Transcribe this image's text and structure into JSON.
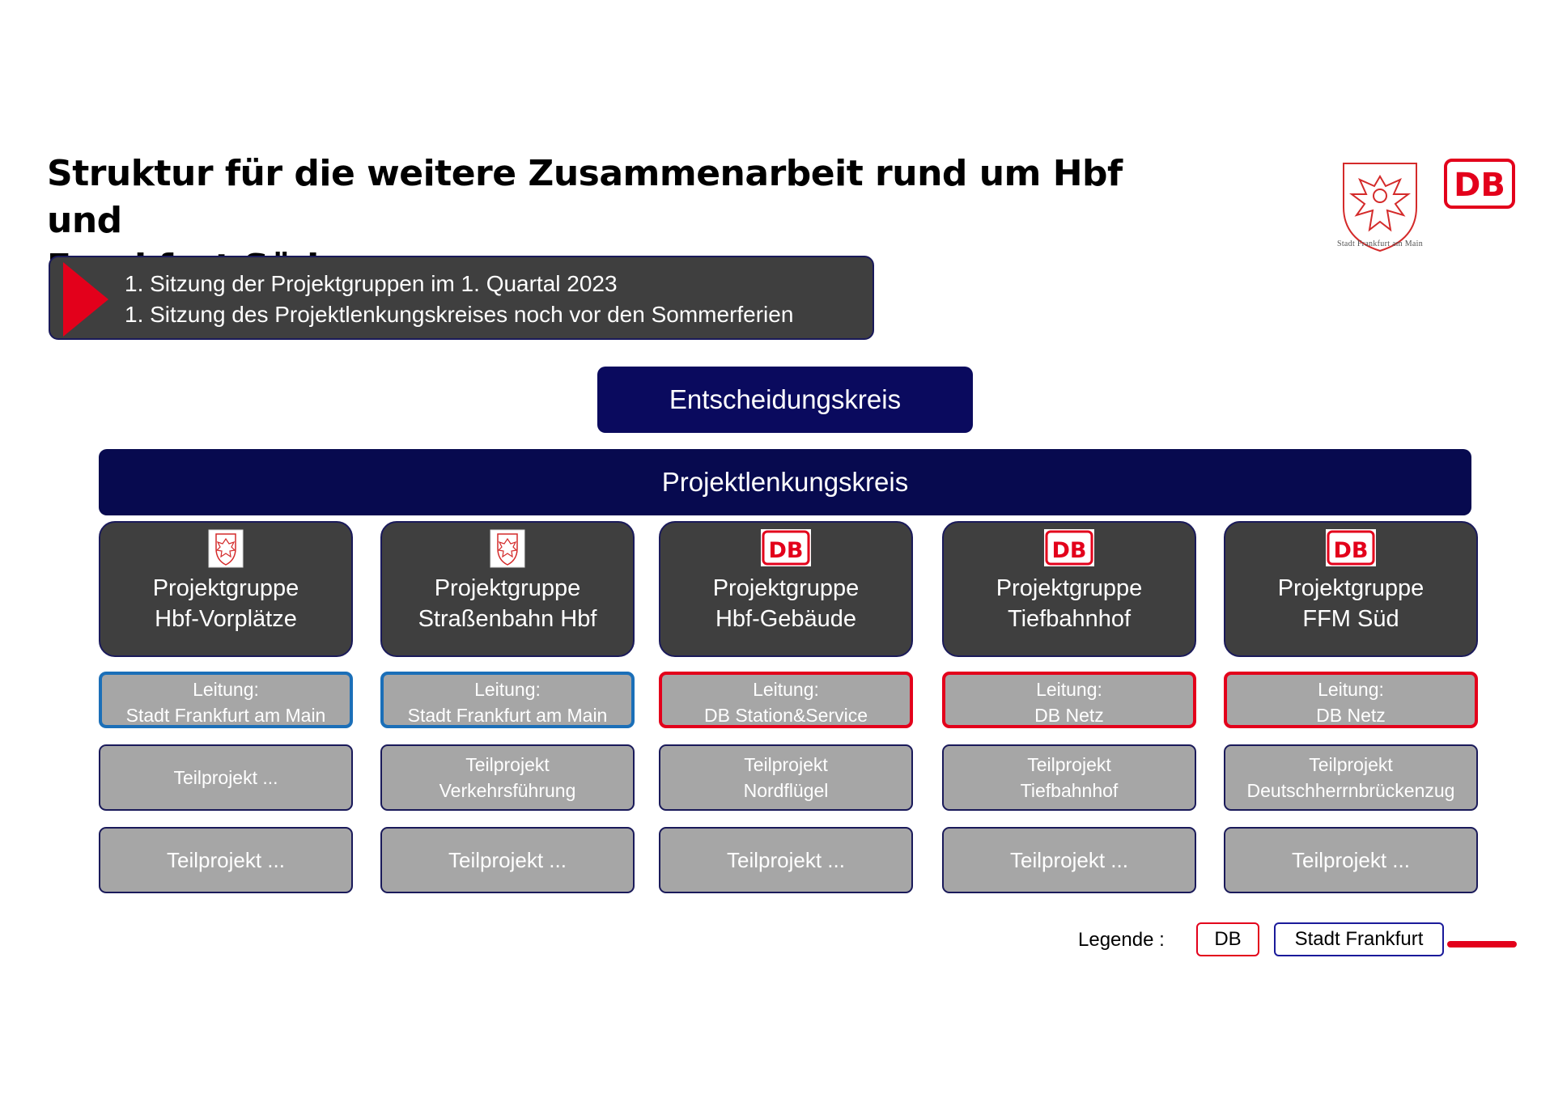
{
  "title_line1": "Struktur für die weitere Zusammenarbeit rund um Hbf und",
  "title_line2": "Frankfurt Süd",
  "frankfurt_logo_caption": "Stadt Frankfurt am Main",
  "db_logo_text": "DB",
  "banner": {
    "line1": "1. Sitzung der Projektgruppen im 1. Quartal 2023",
    "line2": "1. Sitzung des Projektlenkungskreises noch vor den Sommerferien"
  },
  "entscheidungskreis": "Entscheidungskreis",
  "projektlenkungskreis": "Projektlenkungskreis",
  "columns": [
    {
      "logo": "frankfurt-eagle",
      "pg1": "Projektgruppe",
      "pg2": "Hbf-Vorplätze",
      "lead1": "Leitung:",
      "lead2": "Stadt Frankfurt am Main",
      "tp1a": "Teilprojekt ...",
      "tp1b": "",
      "tp2": "Teilprojekt ..."
    },
    {
      "logo": "frankfurt-eagle",
      "pg1": "Projektgruppe",
      "pg2": "Straßenbahn Hbf",
      "lead1": "Leitung:",
      "lead2": "Stadt Frankfurt am Main",
      "tp1a": "Teilprojekt",
      "tp1b": "Verkehrsführung",
      "tp2": "Teilprojekt ..."
    },
    {
      "logo": "db",
      "pg1": "Projektgruppe",
      "pg2": "Hbf-Gebäude",
      "lead1": "Leitung:",
      "lead2": "DB Station&Service",
      "tp1a": "Teilprojekt",
      "tp1b": "Nordflügel",
      "tp2": "Teilprojekt ..."
    },
    {
      "logo": "db",
      "pg1": "Projektgruppe",
      "pg2": "Tiefbahnhof",
      "lead1": "Leitung:",
      "lead2": "DB Netz",
      "tp1a": "Teilprojekt",
      "tp1b": "Tiefbahnhof",
      "tp2": "Teilprojekt ..."
    },
    {
      "logo": "db",
      "pg1": "Projektgruppe",
      "pg2": "FFM Süd",
      "lead1": "Leitung:",
      "lead2": "DB Netz",
      "tp1a": "Teilprojekt",
      "tp1b": "Deutschherrnbrückenzug",
      "tp2": "Teilprojekt ..."
    }
  ],
  "legend": {
    "label": "Legende :",
    "db": "DB",
    "stadt": "Stadt Frankfurt"
  },
  "colors": {
    "db_red": "#e3001b",
    "navy": "#0a0a5e",
    "dark_box": "#3f3f3f",
    "grey_box": "#a6a6a6",
    "stadt_blue": "#1b6fb8"
  }
}
